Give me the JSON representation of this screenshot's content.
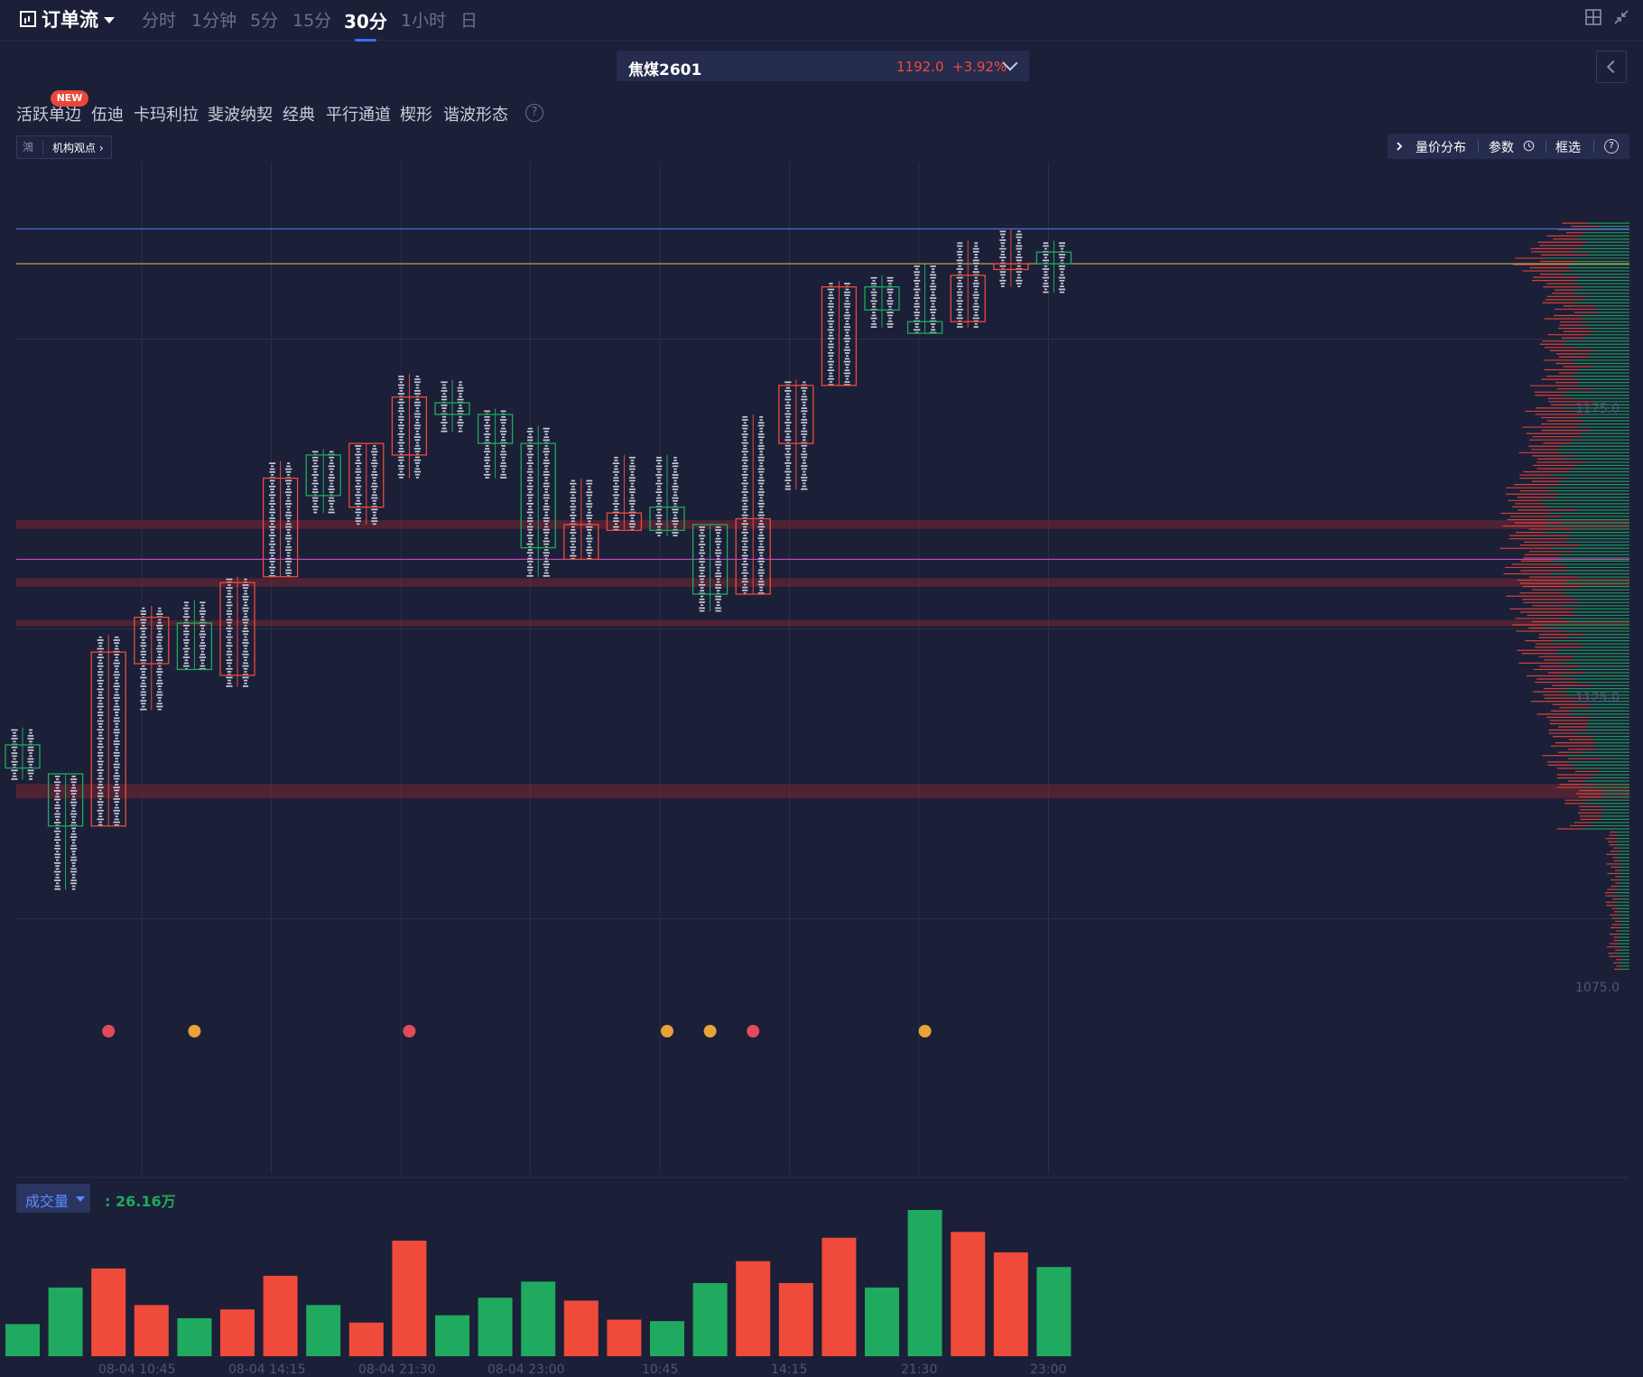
{
  "toolbar": {
    "title": "订单流",
    "periods": [
      "分时",
      "1分钟",
      "5分",
      "15分",
      "30分",
      "1小时",
      "日"
    ],
    "active_period": "30分"
  },
  "symbol": {
    "name": "焦煤2601",
    "price": "1192.0",
    "change_pct": "+3.92%"
  },
  "drawing_tools": {
    "items": [
      "活跃单边",
      "伍迪",
      "卡玛利拉",
      "斐波纳契",
      "经典",
      "平行通道",
      "楔形",
      "谐波形态"
    ],
    "new_badge": "NEW",
    "help": "?"
  },
  "institution": {
    "logo": "鴻",
    "label": "机构观点 ›"
  },
  "right_tools": {
    "volume_profile": "量价分布",
    "params": "参数",
    "frame_select": "框选",
    "help": "?"
  },
  "price_axis": {
    "labels": [
      "1175.0",
      "1125.0",
      "1075.0"
    ]
  },
  "time_axis": {
    "labels": [
      "08-04 10:45",
      "08-04 14:15",
      "08-04 21:30",
      "08-04 23:00",
      "10:45",
      "14:15",
      "21:30",
      "23:00"
    ]
  },
  "volume_panel": {
    "label": "成交量",
    "value": ": 26.16万"
  },
  "colors": {
    "background": "#1b1f37",
    "up": "#ef4a3a",
    "down": "#1faa5f",
    "accent": "#3b6df5"
  },
  "chart_data": {
    "type": "bar",
    "title": "",
    "ylim": [
      1060,
      1200
    ],
    "candles": [
      {
        "open": 1101,
        "close": 1105,
        "high": 1108,
        "low": 1099,
        "dir": "down"
      },
      {
        "open": 1100,
        "close": 1091,
        "high": 1100,
        "low": 1080,
        "dir": "down"
      },
      {
        "open": 1091,
        "close": 1121,
        "high": 1124,
        "low": 1091,
        "dir": "up"
      },
      {
        "open": 1119,
        "close": 1127,
        "high": 1129,
        "low": 1111,
        "dir": "up"
      },
      {
        "open": 1118,
        "close": 1126,
        "high": 1130,
        "low": 1118,
        "dir": "down"
      },
      {
        "open": 1117,
        "close": 1133,
        "high": 1134,
        "low": 1115,
        "dir": "up"
      },
      {
        "open": 1134,
        "close": 1151,
        "high": 1154,
        "low": 1134,
        "dir": "up"
      },
      {
        "open": 1148,
        "close": 1155,
        "high": 1156,
        "low": 1145,
        "dir": "down"
      },
      {
        "open": 1146,
        "close": 1157,
        "high": 1157,
        "low": 1143,
        "dir": "up"
      },
      {
        "open": 1155,
        "close": 1165,
        "high": 1169,
        "low": 1151,
        "dir": "up"
      },
      {
        "open": 1162,
        "close": 1164,
        "high": 1168,
        "low": 1159,
        "dir": "down"
      },
      {
        "open": 1157,
        "close": 1162,
        "high": 1163,
        "low": 1151,
        "dir": "down"
      },
      {
        "open": 1139,
        "close": 1157,
        "high": 1160,
        "low": 1134,
        "dir": "down"
      },
      {
        "open": 1137,
        "close": 1143,
        "high": 1151,
        "low": 1137,
        "dir": "up"
      },
      {
        "open": 1142,
        "close": 1145,
        "high": 1155,
        "low": 1142,
        "dir": "up"
      },
      {
        "open": 1142,
        "close": 1146,
        "high": 1155,
        "low": 1141,
        "dir": "down"
      },
      {
        "open": 1131,
        "close": 1143,
        "high": 1143,
        "low": 1128,
        "dir": "down"
      },
      {
        "open": 1131,
        "close": 1144,
        "high": 1162,
        "low": 1131,
        "dir": "up"
      },
      {
        "open": 1157,
        "close": 1167,
        "high": 1168,
        "low": 1149,
        "dir": "up"
      },
      {
        "open": 1167,
        "close": 1184,
        "high": 1185,
        "low": 1167,
        "dir": "up"
      },
      {
        "open": 1184,
        "close": 1180,
        "high": 1186,
        "low": 1177,
        "dir": "down"
      },
      {
        "open": 1178,
        "close": 1176,
        "high": 1188,
        "low": 1176,
        "dir": "down"
      },
      {
        "open": 1178,
        "close": 1186,
        "high": 1192,
        "low": 1177,
        "dir": "up"
      },
      {
        "open": 1187,
        "close": 1188,
        "high": 1194,
        "low": 1184,
        "dir": "up"
      },
      {
        "open": 1188,
        "close": 1190,
        "high": 1192,
        "low": 1183,
        "dir": "down"
      }
    ],
    "volume": [
      {
        "value": 0.22,
        "dir": "down"
      },
      {
        "value": 0.47,
        "dir": "down"
      },
      {
        "value": 0.6,
        "dir": "up"
      },
      {
        "value": 0.35,
        "dir": "up"
      },
      {
        "value": 0.26,
        "dir": "down"
      },
      {
        "value": 0.32,
        "dir": "up"
      },
      {
        "value": 0.55,
        "dir": "up"
      },
      {
        "value": 0.35,
        "dir": "down"
      },
      {
        "value": 0.23,
        "dir": "up"
      },
      {
        "value": 0.79,
        "dir": "up"
      },
      {
        "value": 0.28,
        "dir": "down"
      },
      {
        "value": 0.4,
        "dir": "down"
      },
      {
        "value": 0.51,
        "dir": "down"
      },
      {
        "value": 0.38,
        "dir": "up"
      },
      {
        "value": 0.25,
        "dir": "up"
      },
      {
        "value": 0.24,
        "dir": "down"
      },
      {
        "value": 0.5,
        "dir": "down"
      },
      {
        "value": 0.65,
        "dir": "up"
      },
      {
        "value": 0.5,
        "dir": "up"
      },
      {
        "value": 0.81,
        "dir": "up"
      },
      {
        "value": 0.47,
        "dir": "down"
      },
      {
        "value": 1.0,
        "dir": "down"
      },
      {
        "value": 0.85,
        "dir": "up"
      },
      {
        "value": 0.71,
        "dir": "up"
      },
      {
        "value": 0.61,
        "dir": "down"
      }
    ],
    "reference_lines": [
      {
        "price": 1194,
        "color": "#4a6fd6"
      },
      {
        "price": 1188,
        "color": "#c9b24a"
      },
      {
        "price": 1137,
        "color": "#c44ac0"
      }
    ],
    "zones": [
      {
        "price": 1143,
        "height": 1.5
      },
      {
        "price": 1133,
        "height": 1.5
      },
      {
        "price": 1126,
        "height": 1.0
      },
      {
        "price": 1097,
        "height": 2.5
      }
    ],
    "markers": [
      {
        "index": 2,
        "icon": "house-icon",
        "color": "#e24b5a"
      },
      {
        "index": 4,
        "icon": "star-icon",
        "color": "#e7a23a"
      },
      {
        "index": 9,
        "icon": "house-icon",
        "color": "#e24b5a"
      },
      {
        "index": 15,
        "icon": "star-icon",
        "color": "#e7a23a"
      },
      {
        "index": 16,
        "icon": "coin-icon",
        "color": "#e7a23a"
      },
      {
        "index": 17,
        "icon": "house-icon",
        "color": "#e24b5a"
      },
      {
        "index": 21,
        "icon": "bank-icon",
        "color": "#e7a23a"
      }
    ]
  }
}
